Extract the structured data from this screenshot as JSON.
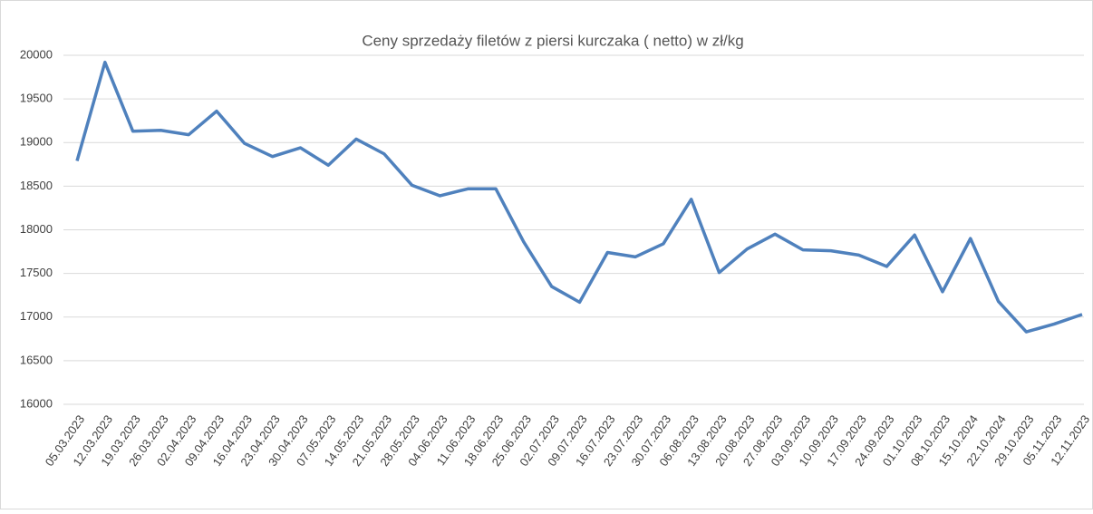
{
  "chart_data": {
    "type": "line",
    "title": "Ceny sprzedaży filetów z piersi kurczaka ( netto) w zł/kg",
    "categories": [
      "05.03.2023",
      "12.03.2023",
      "19.03.2023",
      "26.03.2023",
      "02.04.2023",
      "09.04.2023",
      "16.04.2023",
      "23.04.2023",
      "30.04.2023",
      "07.05.2023",
      "14.05.2023",
      "21.05.2023",
      "28.05.2023",
      "04.06.2023",
      "11.06.2023",
      "18.06.2023",
      "25.06.2023",
      "02.07.2023",
      "09.07.2023",
      "16.07.2023",
      "23.07.2023",
      "30.07.2023",
      "06.08.2023",
      "13.08.2023",
      "20.08.2023",
      "27.08.2023",
      "03.09.2023",
      "10.09.2023",
      "17.09.2023",
      "24.09.2023",
      "01.10.2023",
      "08.10.2023",
      "15.10.2024",
      "22.10.2024",
      "29.10.2023",
      "05.11.2023",
      "12.11.2023"
    ],
    "values": [
      18790,
      19920,
      19130,
      19140,
      19090,
      19360,
      18990,
      18840,
      18940,
      18740,
      19040,
      18870,
      18510,
      18390,
      18470,
      18470,
      17860,
      17350,
      17170,
      17740,
      17690,
      17840,
      18350,
      17510,
      17780,
      17950,
      17770,
      17760,
      17710,
      17580,
      17940,
      17290,
      17900,
      17180,
      16830,
      16920,
      17030
    ],
    "color": "#4f81bd",
    "ylim": [
      16000,
      20000
    ],
    "yticks": [
      16000,
      16500,
      17000,
      17500,
      18000,
      18500,
      19000,
      19500,
      20000
    ],
    "grid": true
  }
}
